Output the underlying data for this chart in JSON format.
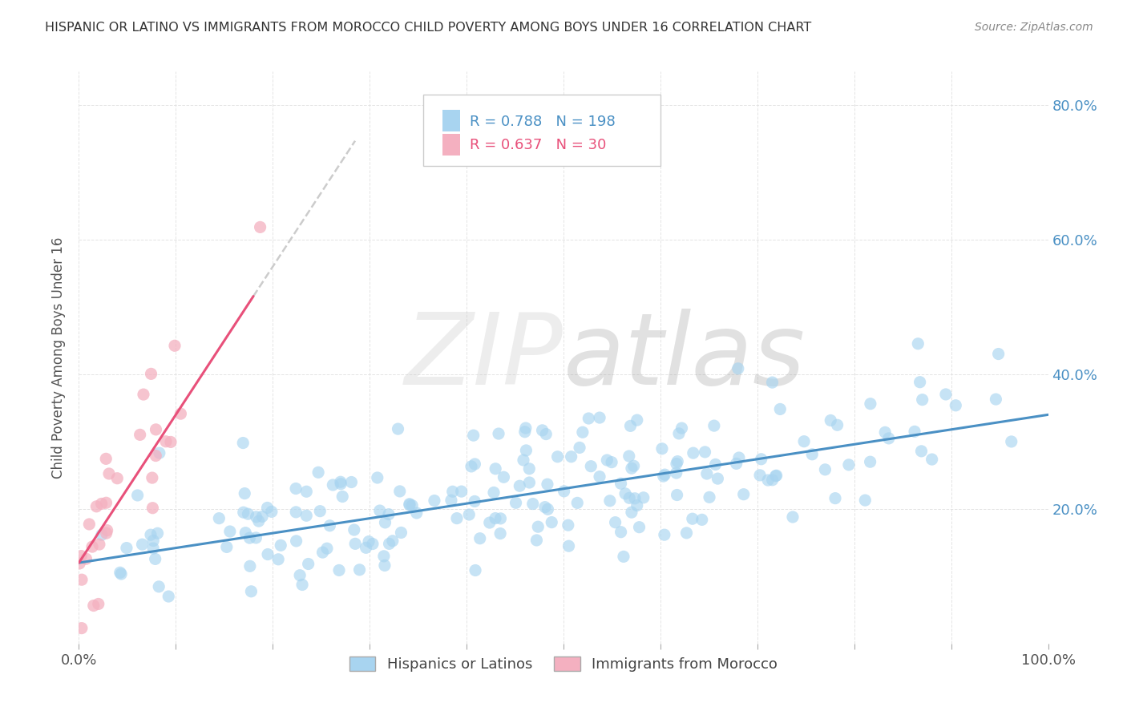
{
  "title": "HISPANIC OR LATINO VS IMMIGRANTS FROM MOROCCO CHILD POVERTY AMONG BOYS UNDER 16 CORRELATION CHART",
  "source": "Source: ZipAtlas.com",
  "ylabel": "Child Poverty Among Boys Under 16",
  "xlim": [
    0.0,
    1.0
  ],
  "ylim": [
    0.0,
    0.85
  ],
  "x_tick_vals": [
    0.0,
    0.1,
    0.2,
    0.3,
    0.4,
    0.5,
    0.6,
    0.7,
    0.8,
    0.9,
    1.0
  ],
  "x_tick_labels_show": {
    "0.0": "0.0%",
    "1.0": "100.0%"
  },
  "y_tick_vals": [
    0.2,
    0.4,
    0.6,
    0.8
  ],
  "y_tick_labels": [
    "20.0%",
    "40.0%",
    "60.0%",
    "80.0%"
  ],
  "legend_entries": [
    {
      "label": "Hispanics or Latinos",
      "color": "#a8d4f0",
      "R": "0.788",
      "N": "198"
    },
    {
      "label": "Immigrants from Morocco",
      "color": "#f4b0c0",
      "R": "0.637",
      "N": "30"
    }
  ],
  "scatter_color_blue": "#a8d4f0",
  "scatter_color_pink": "#f4b0c0",
  "trend_color_blue": "#4a90c4",
  "trend_color_pink": "#e8507a",
  "trend_color_gray": "#cccccc",
  "background_color": "#ffffff",
  "grid_color": "#dddddd",
  "title_color": "#333333",
  "source_color": "#888888",
  "ylabel_color": "#555555",
  "right_tick_color": "#4a90c4",
  "bottom_label_color": "#555555"
}
